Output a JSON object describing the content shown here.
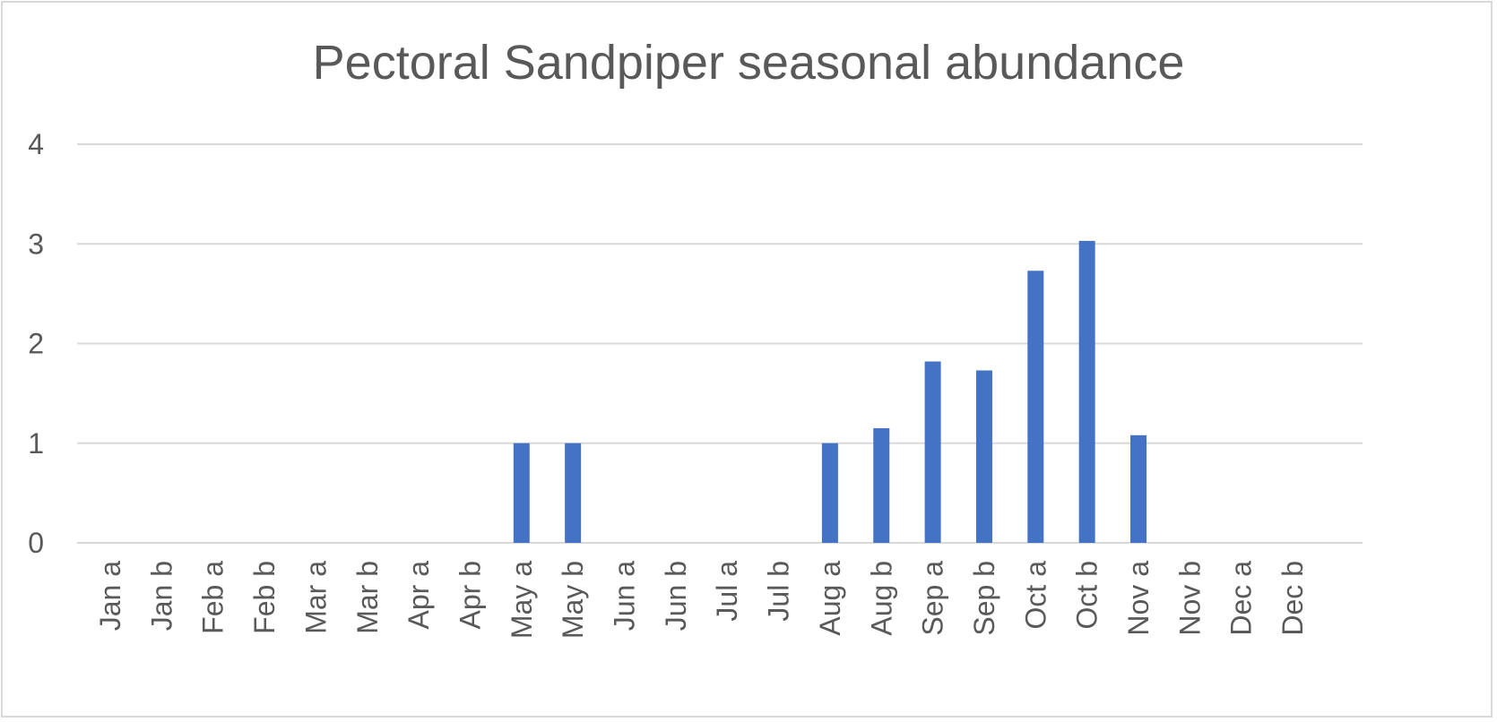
{
  "chart_data": {
    "type": "bar",
    "title": "Pectoral Sandpiper seasonal abundance",
    "xlabel": "",
    "ylabel": "",
    "ylim": [
      0,
      4
    ],
    "yticks": [
      "0",
      "1",
      "2",
      "3",
      "4"
    ],
    "grid": true,
    "legend": "none",
    "categories": [
      "Jan a",
      "Jan b",
      "Feb a",
      "Feb b",
      "Mar a",
      "Mar b",
      "Apr a",
      "Apr b",
      "May a",
      "May b",
      "Jun a",
      "Jun b",
      "Jul a",
      "Jul b",
      "Aug a",
      "Aug b",
      "Sep a",
      "Sep b",
      "Oct a",
      "Oct b",
      "Nov a",
      "Nov b",
      "Dec a",
      "Dec b"
    ],
    "values": [
      0,
      0,
      0,
      0,
      0,
      0,
      0,
      0,
      1,
      1,
      0,
      0,
      0,
      0,
      1,
      1.15,
      1.82,
      1.73,
      2.73,
      3.03,
      1.08,
      0,
      0,
      0
    ],
    "colors": {
      "bar": "#4472c4",
      "grid": "#d9d9d9",
      "text": "#595959",
      "border": "#d9d9d9"
    }
  }
}
